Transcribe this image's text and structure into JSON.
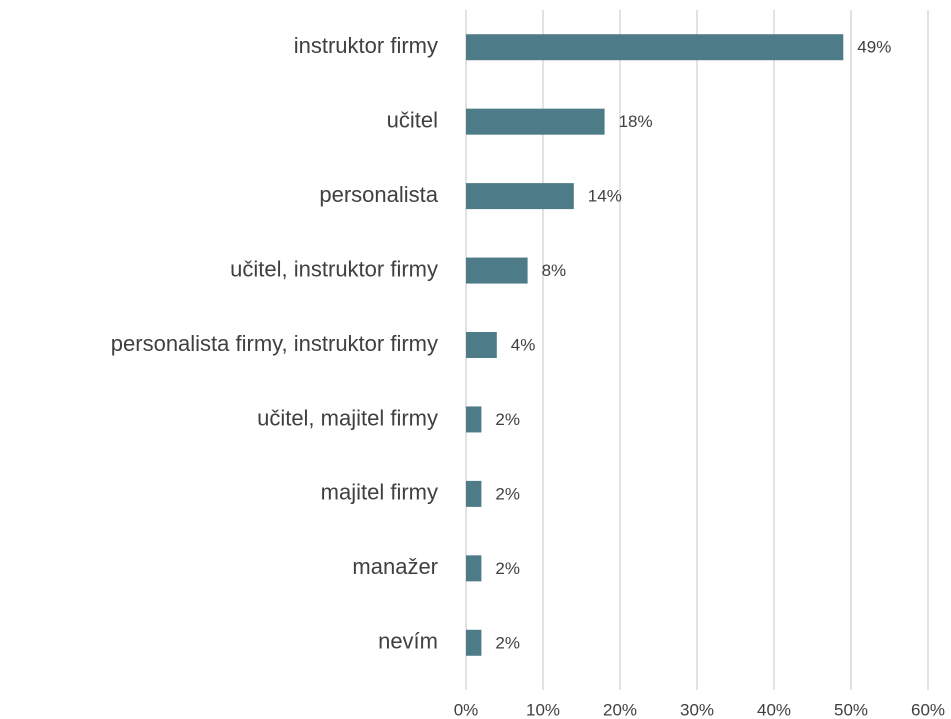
{
  "chart_data": {
    "type": "bar",
    "orientation": "horizontal",
    "categories": [
      "instruktor firmy",
      "učitel",
      "personalista",
      "učitel, instruktor firmy",
      "personalista firmy, instruktor firmy",
      "učitel, majitel firmy",
      "majitel firmy",
      "manažer",
      "nevím"
    ],
    "values": [
      49,
      18,
      14,
      8,
      4,
      2,
      2,
      2,
      2
    ],
    "value_labels": [
      "49%",
      "18%",
      "14%",
      "8%",
      "4%",
      "2%",
      "2%",
      "2%",
      "2%"
    ],
    "color": "#4e7b88",
    "xlim": [
      0,
      60
    ],
    "xticks": [
      {
        "value": 0,
        "label": "0%"
      },
      {
        "value": 10,
        "label": "10%"
      },
      {
        "value": 20,
        "label": "20%"
      },
      {
        "value": 30,
        "label": "30%"
      },
      {
        "value": 40,
        "label": "40%"
      },
      {
        "value": 50,
        "label": "50%"
      },
      {
        "value": 60,
        "label": "60%"
      }
    ],
    "grid": true
  }
}
